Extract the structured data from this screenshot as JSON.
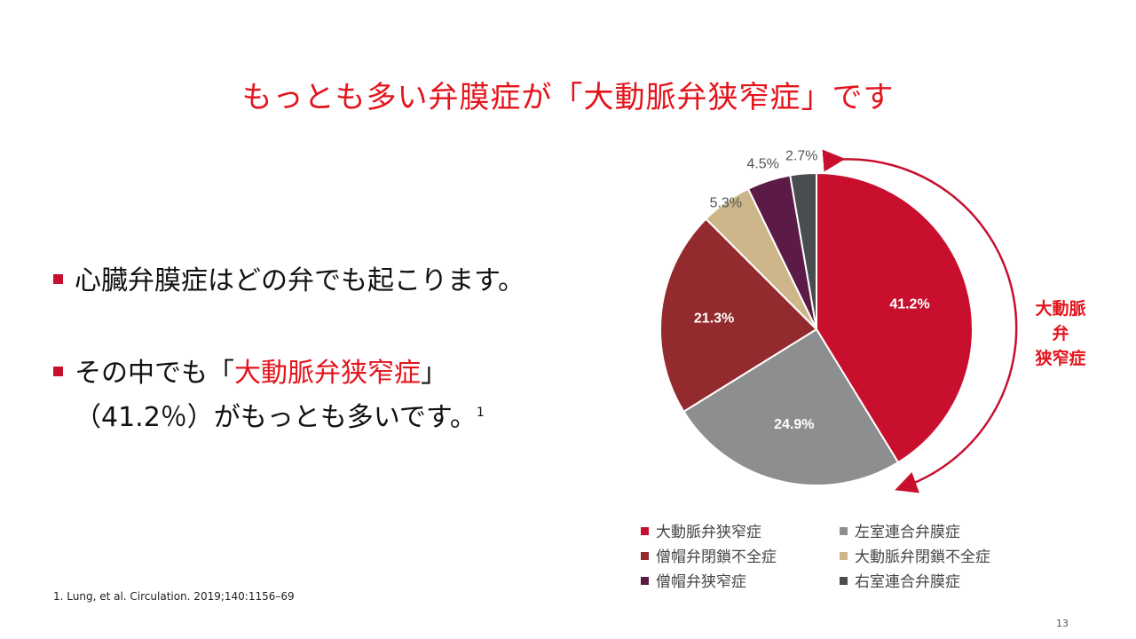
{
  "slide": {
    "title": "もっとも多い弁膜症が「大動脈弁狭窄症」です",
    "bullet1": "心臓弁膜症はどの弁でも起こります。",
    "bullet2_pre": "その中でも「",
    "bullet2_highlight": "大動脈弁狭窄症",
    "bullet2_post": "」（41.2％）がもっとも多いです。",
    "bullet2_sup": "1",
    "footnote": "1. Lung, et al. Circulation. 2019;140:1156–69",
    "page_number": "13",
    "bracket_label_line1": "大動脈弁",
    "bracket_label_line2": "狭窄症"
  },
  "chart_data": {
    "type": "pie",
    "start_angle_deg": 0,
    "direction": "clockwise",
    "slices": [
      {
        "label": "大動脈弁狭窄症",
        "value": 41.2,
        "display": "41.2%",
        "color": "#c8102e",
        "label_color": "#ffffff"
      },
      {
        "label": "左室連合弁膜症",
        "value": 24.9,
        "display": "24.9%",
        "color": "#8c8e8f",
        "label_color": "#ffffff"
      },
      {
        "label": "僧帽弁閉鎖不全症",
        "value": 21.3,
        "display": "21.3%",
        "color": "#932a2e",
        "label_color": "#ffffff"
      },
      {
        "label": "大動脈弁閉鎖不全症",
        "value": 5.3,
        "display": "5.3%",
        "color": "#ccb68a",
        "label_color": "#555555"
      },
      {
        "label": "僧帽弁狭窄症",
        "value": 4.5,
        "display": "4.5%",
        "color": "#5c1b47",
        "label_color": "#555555"
      },
      {
        "label": "右室連合弁膜症",
        "value": 2.7,
        "display": "2.7%",
        "color": "#4a4d4f",
        "label_color": "#555555"
      }
    ],
    "legend": [
      {
        "label": "大動脈弁狭窄症",
        "color": "#c8102e"
      },
      {
        "label": "左室連合弁膜症",
        "color": "#8c8e8f"
      },
      {
        "label": "僧帽弁閉鎖不全症",
        "color": "#932a2e"
      },
      {
        "label": "大動脈弁閉鎖不全症",
        "color": "#ccb68a"
      },
      {
        "label": "僧帽弁狭窄症",
        "color": "#5c1b47"
      },
      {
        "label": "右室連合弁膜症",
        "color": "#4a4d4f"
      }
    ],
    "legend_placement": "bottom"
  }
}
